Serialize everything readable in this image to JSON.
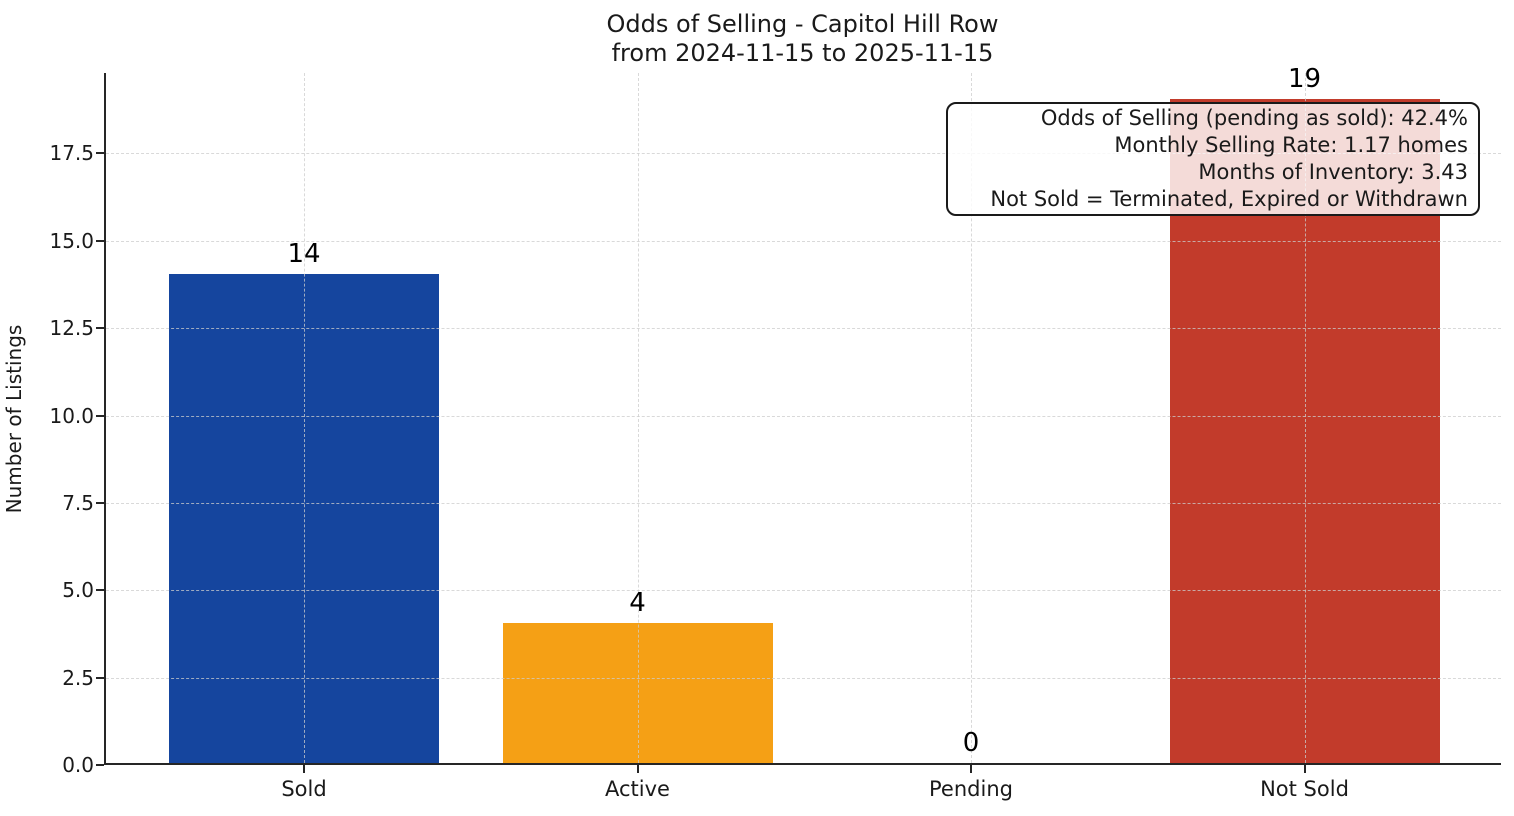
{
  "chart_data": {
    "type": "bar",
    "title": "Odds of Selling - Capitol Hill Row",
    "subtitle": "from 2024-11-15 to 2025-11-15",
    "ylabel": "Number of Listings",
    "xlabel": "",
    "categories": [
      "Sold",
      "Active",
      "Pending",
      "Not Sold"
    ],
    "values": [
      14,
      4,
      0,
      19
    ],
    "bar_value_labels": [
      "14",
      "4",
      "0",
      "19"
    ],
    "bar_colors": [
      "#15459E",
      "#F5A015",
      null,
      "#C23B2B"
    ],
    "yticks": [
      {
        "label": "0.0",
        "value": 0
      },
      {
        "label": "2.5",
        "value": 2.5
      },
      {
        "label": "5.0",
        "value": 5
      },
      {
        "label": "7.5",
        "value": 7.5
      },
      {
        "label": "10.0",
        "value": 10
      },
      {
        "label": "12.5",
        "value": 12.5
      },
      {
        "label": "15.0",
        "value": 15
      },
      {
        "label": "17.5",
        "value": 17.5
      }
    ],
    "ylim": [
      0,
      19.8
    ],
    "grid": {
      "style": "dashed",
      "axes": "both",
      "on_top_of_bars": true
    },
    "legend": "none",
    "annotation": {
      "lines": [
        "Odds of Selling (pending as sold): 42.4%",
        "Monthly Selling Rate: 1.17 homes",
        "Months of Inventory: 3.43",
        "Not Sold = Terminated, Expired or Withdrawn"
      ],
      "position": "top-right"
    }
  },
  "colors": {
    "background": "#ffffff",
    "spine": "#262626",
    "grid": "#cdcdcd",
    "text": "#1a1a1a",
    "annotation_border": "#1a1a1a",
    "annotation_background": "rgba(255,255,255,0.82)"
  }
}
